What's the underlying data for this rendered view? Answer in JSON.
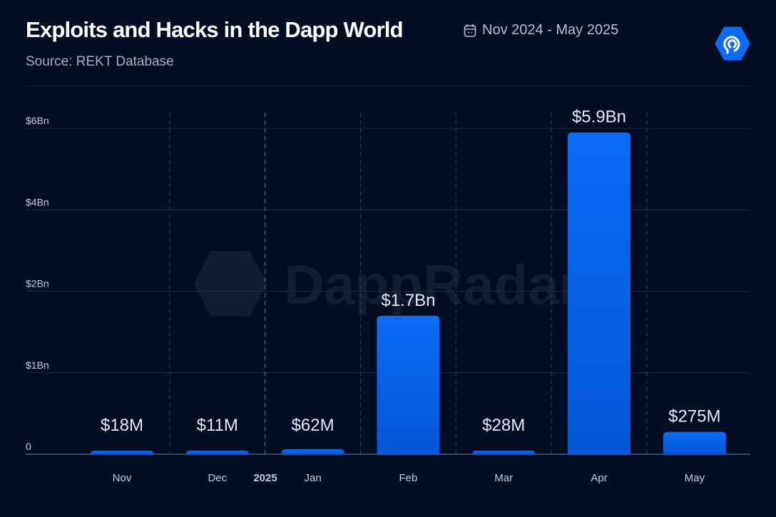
{
  "header": {
    "title": "Exploits and Hacks in the Dapp World",
    "date_range": "Nov 2024 - May 2025",
    "source": "Source: REKT Database",
    "date_icon": "calendar-icon",
    "brand_logo": "dappradar-logo-icon",
    "watermark": "DappRadar"
  },
  "colors": {
    "background": "#020c22",
    "bar": "#0a6cf5",
    "bar_dark": "#0457d6",
    "grid": "#2a3450"
  },
  "chart_data": {
    "type": "bar",
    "title": "Exploits and Hacks in the Dapp World",
    "categories": [
      "Nov",
      "Dec",
      "Jan",
      "Feb",
      "Mar",
      "Apr",
      "May"
    ],
    "values": [
      0.018,
      0.011,
      0.062,
      1.7,
      0.028,
      5.9,
      0.275
    ],
    "unit": "USD billions",
    "data_labels": [
      "$18M",
      "$11M",
      "$62M",
      "$1.7Bn",
      "$28M",
      "$5.9Bn",
      "$275M"
    ],
    "y_ticks": [
      0,
      1,
      2,
      4,
      6
    ],
    "y_tick_labels": [
      "0",
      "$1Bn",
      "$2Bn",
      "$4Bn",
      "$6Bn"
    ],
    "year_marker": "2025",
    "ylim": [
      0,
      6
    ],
    "grid": true,
    "legend": "none",
    "xlabel": "",
    "ylabel": ""
  }
}
